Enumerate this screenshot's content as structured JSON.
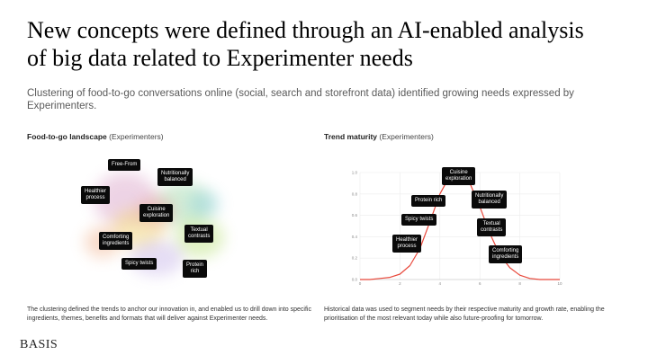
{
  "slide": {
    "title_line1": "New concepts were defined through an AI-enabled analysis",
    "title_line2": "of big data related to Experimenter needs",
    "subtitle": "Clustering of food-to-go conversations online (social, search and storefront data) identified growing needs expressed by Experimenters.",
    "logo": "BASIS"
  },
  "left_panel": {
    "label_bold": "Food-to-go landscape",
    "label_rest": " (Experimenters)",
    "tags": {
      "free_from": "Free-From",
      "nutritionally_balanced": "Nutritionally\nbalanced",
      "healthier_process": "Healthier\nprocess",
      "cuisine_exploration": "Cuisine\nexploration",
      "textual_contrasts": "Textual\ncontrasts",
      "comforting_ingredients": "Comforting\ningredients",
      "spicy_twists": "Spicy twists",
      "protein_rich": "Protein\nrich"
    },
    "caption": "The clustering defined the trends to anchor our innovation in, and enabled us to drill down into specific ingredients, themes, benefits and formats that will deliver against Experimenter needs."
  },
  "right_panel": {
    "label_bold": "Trend maturity",
    "label_rest": " (Experimenters)",
    "caption": "Historical data was used to segment needs by their respective maturity and growth rate, enabling the prioritisation of the most relevant today while also future-proofing for tomorrow.",
    "tags": {
      "cuisine_exploration": "Cuisine\nexploration",
      "protein_rich": "Protein rich",
      "nutritionally_balanced": "Nutritionally\nbalanced",
      "spicy_twists": "Spicy twists",
      "textual_contrasts": "Textual\ncontrasts",
      "healthier_process": "Healthier\nprocess",
      "comforting_ingredients": "Comforting\ningredients"
    }
  },
  "chart_data": {
    "type": "line",
    "xlim": [
      0,
      10
    ],
    "ylim": [
      0,
      1.0
    ],
    "x_ticks": [
      "0",
      "2",
      "4",
      "6",
      "8",
      "10"
    ],
    "y_ticks": [
      "0.0",
      "0.2",
      "0.4",
      "0.6",
      "0.8",
      "1.0"
    ],
    "grid": true,
    "series": [
      {
        "color": "#e8483b",
        "x": [
          0,
          0.5,
          1,
          1.5,
          2,
          2.5,
          3,
          3.5,
          4,
          4.5,
          5,
          5.5,
          6,
          6.5,
          7,
          7.5,
          8,
          8.5,
          9,
          9.5,
          10
        ],
        "values": [
          0.0,
          0.0,
          0.01,
          0.02,
          0.05,
          0.13,
          0.29,
          0.54,
          0.8,
          0.97,
          0.99,
          0.9,
          0.68,
          0.43,
          0.23,
          0.11,
          0.04,
          0.01,
          0.0,
          0.0,
          0.0
        ]
      }
    ]
  }
}
